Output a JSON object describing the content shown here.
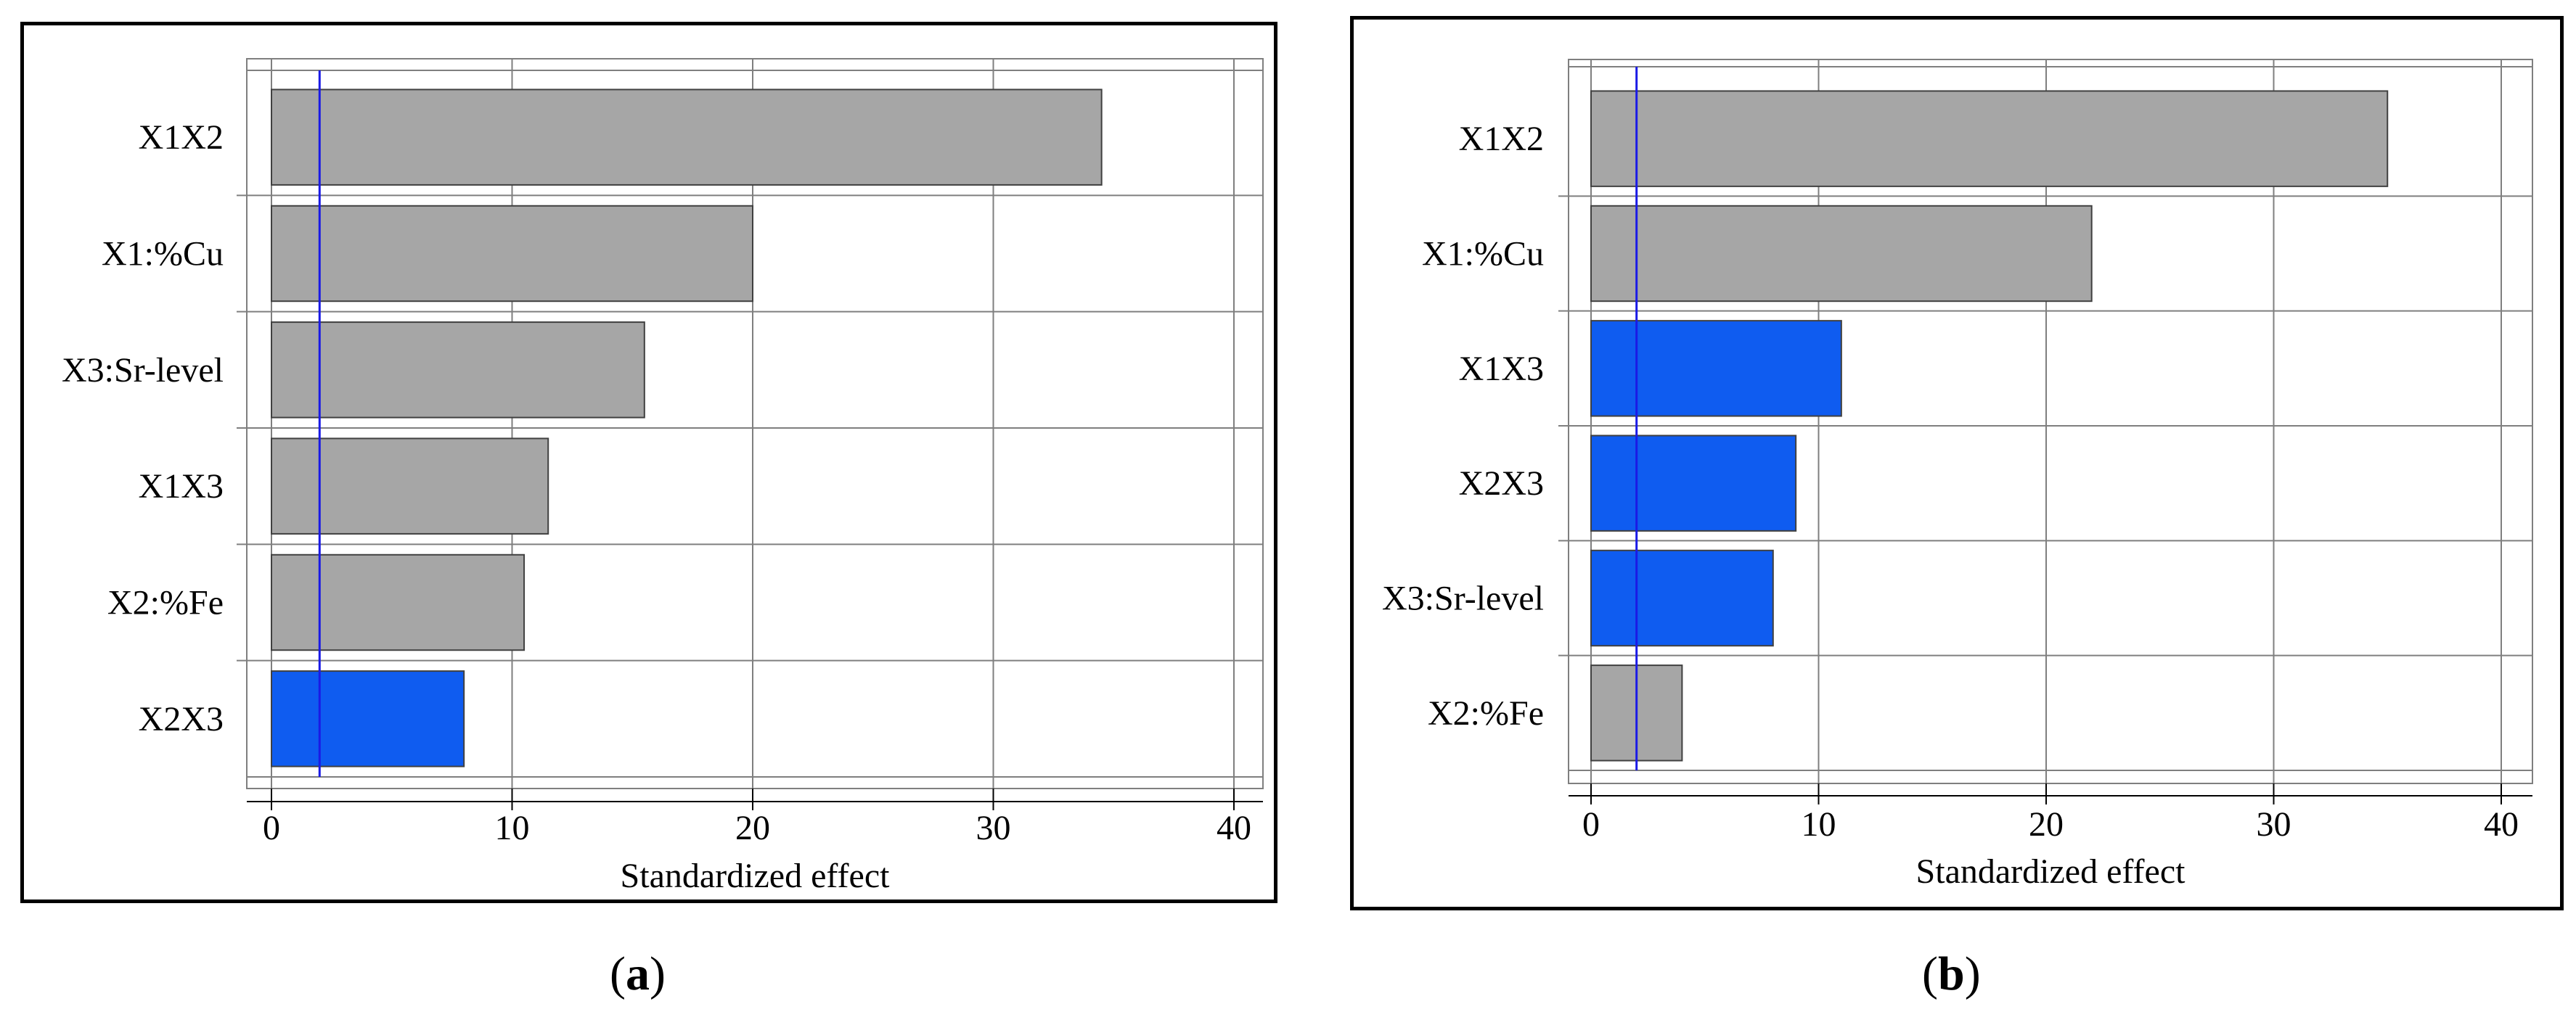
{
  "colors": {
    "bar_gray": "#a6a6a6",
    "bar_blue": "#0f5cf0",
    "ref_line": "#1a1ae6",
    "grid": "#7f7f7f",
    "border": "#000000"
  },
  "captions": {
    "a": {
      "open": "(",
      "letter": "a",
      "close": ")"
    },
    "b": {
      "open": "(",
      "letter": "b",
      "close": ")"
    }
  },
  "chart_data": [
    {
      "type": "bar",
      "orientation": "horizontal",
      "xlabel": "Standardized effect",
      "xlim": [
        0,
        40
      ],
      "xticks": [
        0,
        10,
        20,
        30,
        40
      ],
      "reference_line": 2,
      "grid": true,
      "categories": [
        "X1X2",
        "X1:%Cu",
        "X3:Sr-level",
        "X1X3",
        "X2:%Fe",
        "X2X3"
      ],
      "values": [
        34.5,
        20,
        15.5,
        11.5,
        10.5,
        8
      ],
      "bar_colors": [
        "gray",
        "gray",
        "gray",
        "gray",
        "gray",
        "blue"
      ]
    },
    {
      "type": "bar",
      "orientation": "horizontal",
      "xlabel": "Standardized effect",
      "xlim": [
        0,
        40
      ],
      "xticks": [
        0,
        10,
        20,
        30,
        40
      ],
      "reference_line": 2,
      "grid": true,
      "categories": [
        "X1X2",
        "X1:%Cu",
        "X1X3",
        "X2X3",
        "X3:Sr-level",
        "X2:%Fe"
      ],
      "values": [
        35,
        22,
        11,
        9,
        8,
        4
      ],
      "bar_colors": [
        "gray",
        "gray",
        "blue",
        "blue",
        "blue",
        "gray"
      ]
    }
  ]
}
